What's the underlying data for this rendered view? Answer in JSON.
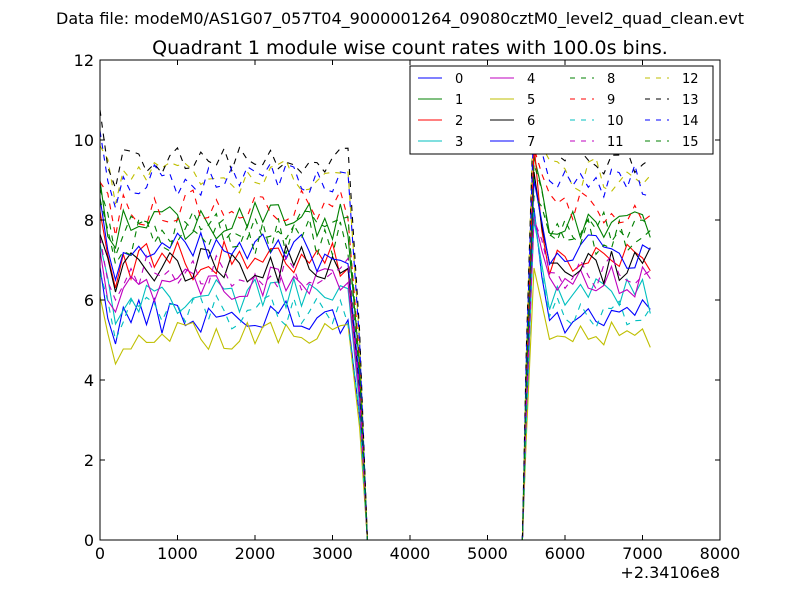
{
  "chart_data": {
    "type": "line",
    "suptitle": "Data file: modeM0/AS1G07_057T04_9000001264_09080cztM0_level2_quad_clean.evt",
    "title": "Quadrant 1 module wise count rates with 100.0s bins.",
    "xlabel": "",
    "ylabel": "",
    "x_offset_label": "+2.34106e8",
    "xlim": [
      0,
      8000
    ],
    "ylim": [
      0,
      12
    ],
    "xticks": [
      0,
      1000,
      2000,
      3000,
      4000,
      5000,
      6000,
      7000,
      8000
    ],
    "yticks": [
      0,
      2,
      4,
      6,
      8,
      10,
      12
    ],
    "grid": false,
    "legend_position": "top-right",
    "legend_columns": 4,
    "bin_width": 100,
    "segments": [
      {
        "start": 0,
        "end": 3250
      },
      {
        "start": 5550,
        "end": 7150
      }
    ],
    "gap_floor": {
      "from": 3450,
      "to": 5450,
      "value": 0
    },
    "series": [
      {
        "name": "0",
        "color": "#0000ff",
        "dash": "solid",
        "level": 5.6,
        "amplitude": 0.45,
        "peak": 8.3
      },
      {
        "name": "1",
        "color": "#008000",
        "dash": "solid",
        "level": 8.0,
        "amplitude": 0.5,
        "peak": 9.6
      },
      {
        "name": "2",
        "color": "#ff0000",
        "dash": "solid",
        "level": 7.0,
        "amplitude": 0.5,
        "peak": 9.9
      },
      {
        "name": "3",
        "color": "#00bfbf",
        "dash": "solid",
        "level": 6.1,
        "amplitude": 0.45,
        "peak": 8.0
      },
      {
        "name": "4",
        "color": "#bf00bf",
        "dash": "solid",
        "level": 6.4,
        "amplitude": 0.45,
        "peak": 8.1
      },
      {
        "name": "5",
        "color": "#bfbf00",
        "dash": "solid",
        "level": 5.1,
        "amplitude": 0.35,
        "peak": 6.8
      },
      {
        "name": "6",
        "color": "#000000",
        "dash": "solid",
        "level": 6.9,
        "amplitude": 0.5,
        "peak": 9.2
      },
      {
        "name": "7",
        "color": "#0000ff",
        "dash": "solid",
        "level": 7.2,
        "amplitude": 0.5,
        "peak": 9.0
      },
      {
        "name": "8",
        "color": "#008000",
        "dash": "dashed",
        "level": 7.6,
        "amplitude": 0.5,
        "peak": 8.6
      },
      {
        "name": "9",
        "color": "#ff0000",
        "dash": "dashed",
        "level": 8.3,
        "amplitude": 0.45,
        "peak": 9.8
      },
      {
        "name": "10",
        "color": "#00bfbf",
        "dash": "dashed",
        "level": 5.7,
        "amplitude": 0.45,
        "peak": 8.2
      },
      {
        "name": "11",
        "color": "#bf00bf",
        "dash": "dashed",
        "level": 6.7,
        "amplitude": 0.45,
        "peak": 8.0
      },
      {
        "name": "12",
        "color": "#bfbf00",
        "dash": "dashed",
        "level": 9.1,
        "amplitude": 0.45,
        "peak": 11.3
      },
      {
        "name": "13",
        "color": "#000000",
        "dash": "dashed",
        "level": 9.5,
        "amplitude": 0.35,
        "peak": 11.0
      },
      {
        "name": "14",
        "color": "#0000ff",
        "dash": "dashed",
        "level": 9.0,
        "amplitude": 0.45,
        "peak": 10.6
      },
      {
        "name": "15",
        "color": "#008000",
        "dash": "dashed",
        "level": 7.8,
        "amplitude": 0.45,
        "peak": 9.4
      }
    ]
  }
}
